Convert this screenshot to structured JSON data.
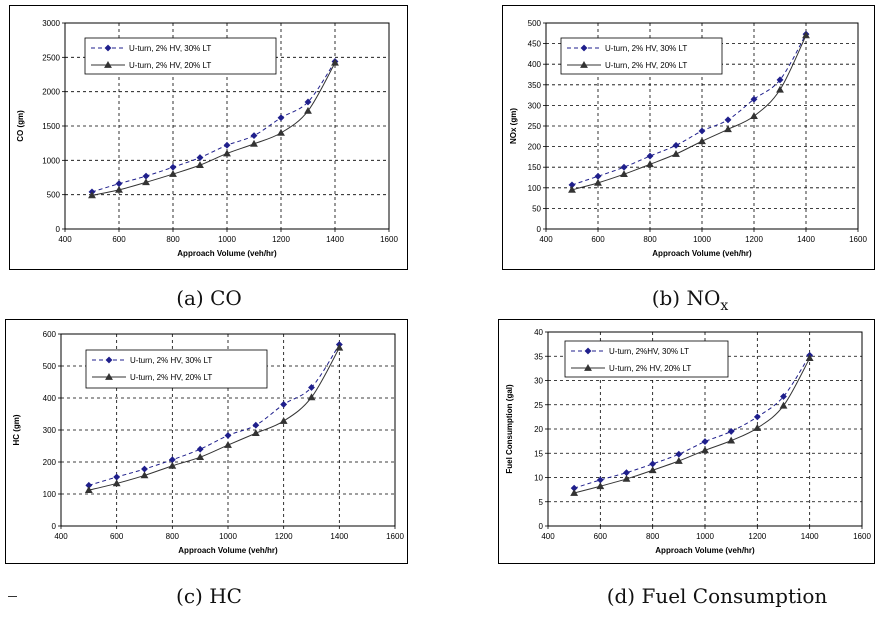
{
  "colors": {
    "series1": "#1f1f8c",
    "series2": "#333333",
    "grid": "#000000"
  },
  "chart_data": [
    {
      "type": "line",
      "caption": "(a) CO",
      "title": "",
      "xlabel": "Approach Volume (veh/hr)",
      "ylabel": "CO (gm)",
      "xlim": [
        400,
        1600
      ],
      "ylim": [
        0,
        3000
      ],
      "xticks": [
        400,
        600,
        800,
        1000,
        1200,
        1400,
        1600
      ],
      "yticks": [
        0,
        500,
        1000,
        1500,
        2000,
        2500,
        3000
      ],
      "grid": true,
      "legend_position": "top-left",
      "x": [
        500,
        600,
        700,
        800,
        900,
        1000,
        1100,
        1200,
        1300,
        1400
      ],
      "series": [
        {
          "name": "U-turn, 2% HV, 30% LT",
          "marker": "diamond",
          "line": "dashed",
          "values": [
            540,
            660,
            770,
            900,
            1040,
            1220,
            1360,
            1620,
            1850,
            2440
          ]
        },
        {
          "name": "U-turn, 2% HV, 20% LT",
          "marker": "triangle",
          "line": "solid",
          "values": [
            490,
            570,
            680,
            800,
            930,
            1100,
            1240,
            1400,
            1720,
            2420
          ]
        }
      ]
    },
    {
      "type": "line",
      "caption": "(b) NO",
      "caption_sub": "x",
      "title": "",
      "xlabel": "Approach Volume (veh/hr)",
      "ylabel": "NOx (gm)",
      "xlim": [
        400,
        1600
      ],
      "ylim": [
        0,
        500
      ],
      "xticks": [
        400,
        600,
        800,
        1000,
        1200,
        1400,
        1600
      ],
      "yticks": [
        0,
        50,
        100,
        150,
        200,
        250,
        300,
        350,
        400,
        450,
        500
      ],
      "grid": true,
      "legend_position": "top-left",
      "x": [
        500,
        600,
        700,
        800,
        900,
        1000,
        1100,
        1200,
        1300,
        1400
      ],
      "series": [
        {
          "name": "U-turn, 2% HV, 30% LT",
          "marker": "diamond",
          "line": "dashed",
          "values": [
            107,
            128,
            150,
            177,
            203,
            238,
            265,
            315,
            362,
            473
          ]
        },
        {
          "name": "U-turn, 2% HV, 20% LT",
          "marker": "triangle",
          "line": "solid",
          "values": [
            95,
            112,
            133,
            157,
            182,
            213,
            242,
            274,
            338,
            470
          ]
        }
      ]
    },
    {
      "type": "line",
      "caption": "(c) HC",
      "title": "",
      "xlabel": "Approach Volume (veh/hr)",
      "ylabel": "HC (gm)",
      "xlim": [
        400,
        1600
      ],
      "ylim": [
        0,
        600
      ],
      "xticks": [
        400,
        600,
        800,
        1000,
        1200,
        1400,
        1600
      ],
      "yticks": [
        0,
        100,
        200,
        300,
        400,
        500,
        600
      ],
      "grid": true,
      "legend_position": "top-left",
      "x": [
        500,
        600,
        700,
        800,
        900,
        1000,
        1100,
        1200,
        1300,
        1400
      ],
      "series": [
        {
          "name": "U-turn, 2% HV, 30% LT",
          "marker": "diamond",
          "line": "dashed",
          "values": [
            127,
            153,
            178,
            207,
            240,
            283,
            315,
            380,
            433,
            567
          ]
        },
        {
          "name": "U-turn, 2% HV, 20% LT",
          "marker": "triangle",
          "line": "solid",
          "values": [
            112,
            133,
            158,
            188,
            215,
            253,
            290,
            328,
            402,
            557
          ]
        }
      ]
    },
    {
      "type": "line",
      "caption": "(d) Fuel Consumption",
      "title": "",
      "xlabel": "Approach Volume (veh/hr)",
      "ylabel": "Fuel Consumption (gal)",
      "xlim": [
        400,
        1600
      ],
      "ylim": [
        0,
        40
      ],
      "xticks": [
        400,
        600,
        800,
        1000,
        1200,
        1400,
        1600
      ],
      "yticks": [
        0,
        5,
        10,
        15,
        20,
        25,
        30,
        35,
        40
      ],
      "grid": true,
      "legend_position": "top-left",
      "x": [
        500,
        600,
        700,
        800,
        900,
        1000,
        1100,
        1200,
        1300,
        1400
      ],
      "series": [
        {
          "name": "U-turn, 2%HV, 30% LT",
          "marker": "diamond",
          "line": "dashed",
          "values": [
            7.8,
            9.5,
            11.0,
            12.8,
            14.8,
            17.4,
            19.5,
            22.5,
            26.7,
            35.2
          ]
        },
        {
          "name": "U-turn, 2% HV, 20% LT",
          "marker": "triangle",
          "line": "solid",
          "values": [
            6.8,
            8.2,
            9.7,
            11.5,
            13.4,
            15.6,
            17.6,
            20.2,
            24.8,
            34.6
          ]
        }
      ]
    }
  ]
}
